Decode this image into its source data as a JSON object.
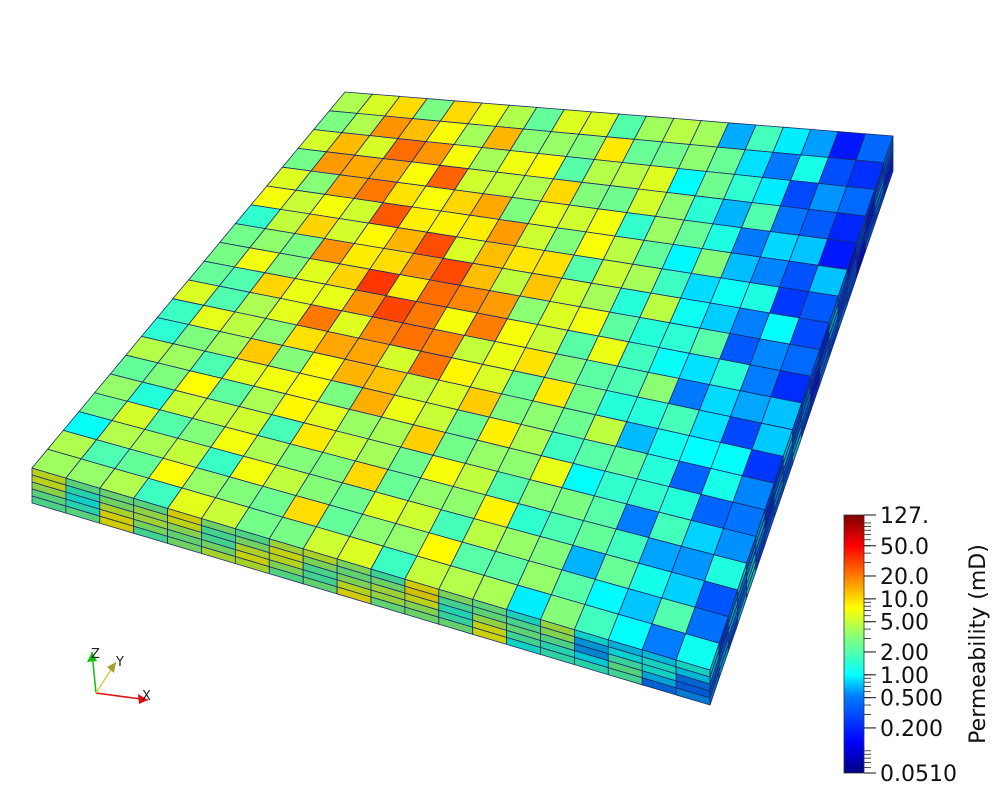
{
  "scene": {
    "grid_size": 20,
    "layers": 5
  },
  "colorbar": {
    "title": "Permeability (mD)",
    "scale": "log",
    "range": [
      0.051,
      127
    ],
    "ticks": [
      {
        "label": "127.",
        "value": 127
      },
      {
        "label": "50.0",
        "value": 50
      },
      {
        "label": "20.0",
        "value": 20
      },
      {
        "label": "10.0",
        "value": 10
      },
      {
        "label": "5.00",
        "value": 5
      },
      {
        "label": "2.00",
        "value": 2
      },
      {
        "label": "1.00",
        "value": 1
      },
      {
        "label": "0.500",
        "value": 0.5
      },
      {
        "label": "0.200",
        "value": 0.2
      },
      {
        "label": "0.0510",
        "value": 0.051
      }
    ],
    "colors": [
      "#00007f",
      "#0000ff",
      "#007fff",
      "#00ffff",
      "#7fff7f",
      "#ffff00",
      "#ff7f00",
      "#ff0000",
      "#7f0000"
    ]
  },
  "orientation_axes": {
    "x_label": "X",
    "y_label": "Y",
    "z_label": "Z",
    "x_color": "#e01010",
    "y_color": "#d8d040",
    "z_color": "#10c010"
  }
}
